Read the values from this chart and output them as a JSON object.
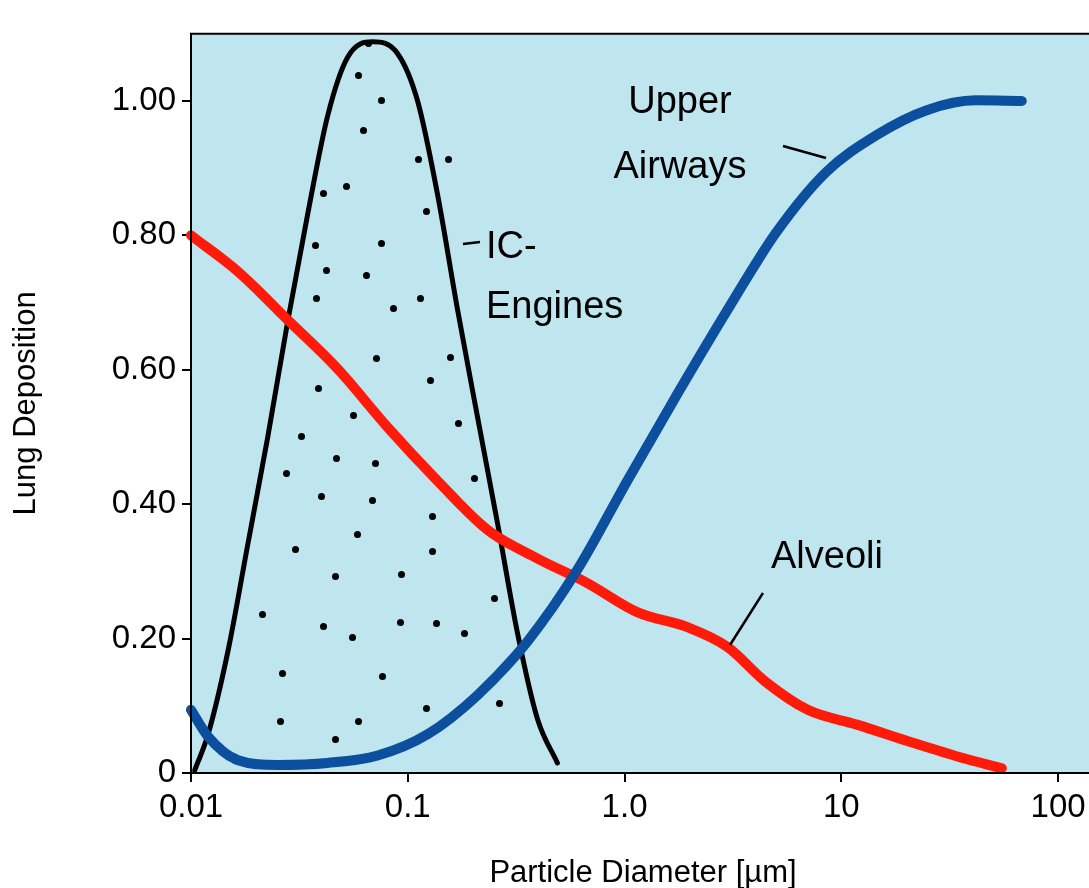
{
  "chart_data": {
    "type": "line",
    "xlabel": "Particle Diameter [µm]",
    "ylabel": "Lung Deposition",
    "log": "x",
    "xlim": [
      0.01,
      148
    ],
    "ylim": [
      0,
      1.1
    ],
    "xticks": [
      {
        "value": 0.01,
        "label": "0.01"
      },
      {
        "value": 0.1,
        "label": "0.1"
      },
      {
        "value": 1,
        "label": "1.0"
      },
      {
        "value": 10,
        "label": "10"
      },
      {
        "value": 100,
        "label": "100"
      }
    ],
    "yticks": [
      0,
      {
        "value": 0.2,
        "label": "0.20"
      },
      {
        "value": 0.4,
        "label": "0.40"
      },
      {
        "value": 0.6,
        "label": "0.60"
      },
      {
        "value": 0.8,
        "label": "0.80"
      },
      {
        "value": 1,
        "label": "1.00"
      }
    ],
    "marker": "none",
    "line_style": "solid",
    "series": [
      {
        "name": "Upper Airways",
        "color": "#0b4f9e",
        "x": [
          0.01,
          0.012,
          0.0165,
          0.0252,
          0.0427,
          0.0726,
          0.124,
          0.21,
          0.357,
          0.61,
          1.03,
          1.76,
          2.97,
          5.0,
          8.5,
          14.5,
          24.6,
          41.8,
          68
        ],
        "values": [
          0.094,
          0.054,
          0.019,
          0.012,
          0.015,
          0.026,
          0.058,
          0.116,
          0.196,
          0.304,
          0.435,
          0.565,
          0.688,
          0.804,
          0.894,
          0.949,
          0.986,
          1.001,
          1.0
        ]
      },
      {
        "name": "Alveoli",
        "color": "#ff1a0a",
        "x": [
          0.01,
          0.0165,
          0.028,
          0.0476,
          0.081,
          0.137,
          0.233,
          0.397,
          0.67,
          1.15,
          1.95,
          2.97,
          4.5,
          7.0,
          11.8,
          20,
          34,
          55
        ],
        "values": [
          0.8,
          0.746,
          0.674,
          0.601,
          0.514,
          0.435,
          0.362,
          0.319,
          0.283,
          0.239,
          0.217,
          0.188,
          0.135,
          0.094,
          0.072,
          0.048,
          0.025,
          0.007
        ]
      },
      {
        "name": "IC-Engines",
        "color": "#000000",
        "x": [
          0.0104,
          0.012,
          0.0148,
          0.0183,
          0.0226,
          0.028,
          0.0346,
          0.0427,
          0.0528,
          0.0689,
          0.09,
          0.111,
          0.137,
          0.17,
          0.21,
          0.26,
          0.32,
          0.397,
          0.49
        ],
        "values": [
          0.004,
          0.058,
          0.181,
          0.341,
          0.5,
          0.674,
          0.833,
          0.978,
          1.065,
          1.088,
          1.07,
          1.0,
          0.862,
          0.688,
          0.529,
          0.37,
          0.21,
          0.08,
          0.015
        ]
      }
    ]
  }
}
